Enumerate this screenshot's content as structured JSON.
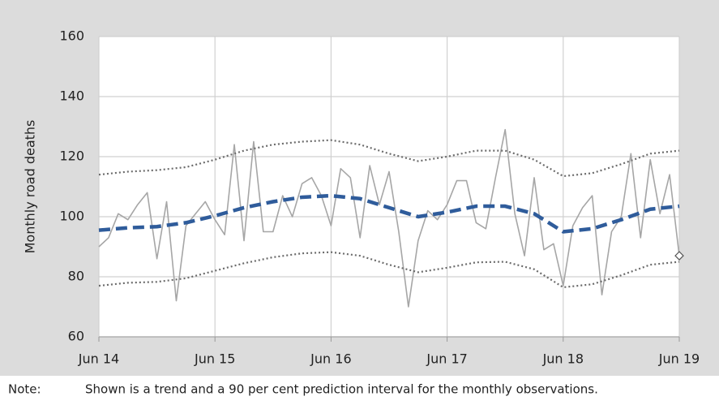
{
  "chart_data": {
    "type": "line",
    "y_label": "Monthly road deaths",
    "xlim": [
      0,
      60
    ],
    "xticks": [
      {
        "value": 0,
        "label": "Jun 14"
      },
      {
        "value": 12,
        "label": "Jun 15"
      },
      {
        "value": 24,
        "label": "Jun 16"
      },
      {
        "value": 36,
        "label": "Jun 17"
      },
      {
        "value": 48,
        "label": "Jun 18"
      },
      {
        "value": 60,
        "label": "Jun 19"
      }
    ],
    "ylim": [
      60,
      160
    ],
    "yticks": [
      60,
      80,
      100,
      120,
      140,
      160
    ],
    "grid": true,
    "last_marker": "diamond",
    "series": [
      {
        "style": "solid",
        "color": "#a6a6a6",
        "x": [
          0,
          1,
          2,
          3,
          4,
          5,
          6,
          7,
          8,
          9,
          10,
          11,
          12,
          13,
          14,
          15,
          16,
          17,
          18,
          19,
          20,
          21,
          22,
          23,
          24,
          25,
          26,
          27,
          28,
          29,
          30,
          31,
          32,
          33,
          34,
          35,
          36,
          37,
          38,
          39,
          40,
          41,
          42,
          43,
          44,
          45,
          46,
          47,
          48,
          49,
          50,
          51,
          52,
          53,
          54,
          55,
          56,
          57,
          58,
          59,
          60
        ],
        "values": [
          90,
          93,
          101,
          99,
          104,
          108,
          86,
          105,
          72,
          97,
          101,
          105,
          99,
          94,
          124,
          92,
          125,
          95,
          95,
          107,
          100,
          111,
          113,
          107,
          97,
          116,
          113,
          93,
          117,
          104,
          115,
          95,
          70,
          92,
          102,
          99,
          104,
          112,
          112,
          98,
          96,
          113,
          129,
          101,
          87,
          113,
          89,
          91,
          77,
          97,
          103,
          107,
          74,
          95,
          100,
          121,
          93,
          119,
          101,
          114,
          87
        ]
      },
      {
        "style": "dotted",
        "color": "#6b6b6b",
        "x": [
          0,
          3,
          6,
          9,
          12,
          15,
          18,
          21,
          24,
          27,
          30,
          33,
          36,
          39,
          42,
          45,
          48,
          51,
          54,
          57,
          60
        ],
        "values": [
          114,
          115,
          115.5,
          116.5,
          119,
          122,
          124,
          125,
          125.5,
          124,
          121,
          118.5,
          120,
          122,
          122,
          119,
          113.5,
          114.5,
          117.5,
          121,
          122
        ]
      },
      {
        "style": "dotted",
        "color": "#6b6b6b",
        "x": [
          0,
          3,
          6,
          9,
          12,
          15,
          18,
          21,
          24,
          27,
          30,
          33,
          36,
          39,
          42,
          45,
          48,
          51,
          54,
          57,
          60
        ],
        "values": [
          77,
          78,
          78.3,
          79.5,
          82,
          84.5,
          86.5,
          87.8,
          88.2,
          87,
          84,
          81.5,
          83,
          84.8,
          85,
          82.5,
          76.5,
          77.5,
          80.5,
          84,
          85
        ]
      },
      {
        "style": "dashed",
        "color": "#2f5c9b",
        "x": [
          0,
          3,
          6,
          9,
          12,
          15,
          18,
          21,
          24,
          27,
          30,
          33,
          36,
          39,
          42,
          45,
          48,
          51,
          54,
          57,
          60
        ],
        "values": [
          95.5,
          96.3,
          96.7,
          98,
          100.3,
          103,
          105,
          106.5,
          107,
          106,
          103,
          100,
          101.5,
          103.5,
          103.5,
          101,
          95,
          96,
          99,
          102.5,
          103.5
        ]
      }
    ]
  },
  "note": {
    "label": "Note:",
    "text": "Shown is a trend and a 90 per cent prediction interval for the monthly observations."
  }
}
